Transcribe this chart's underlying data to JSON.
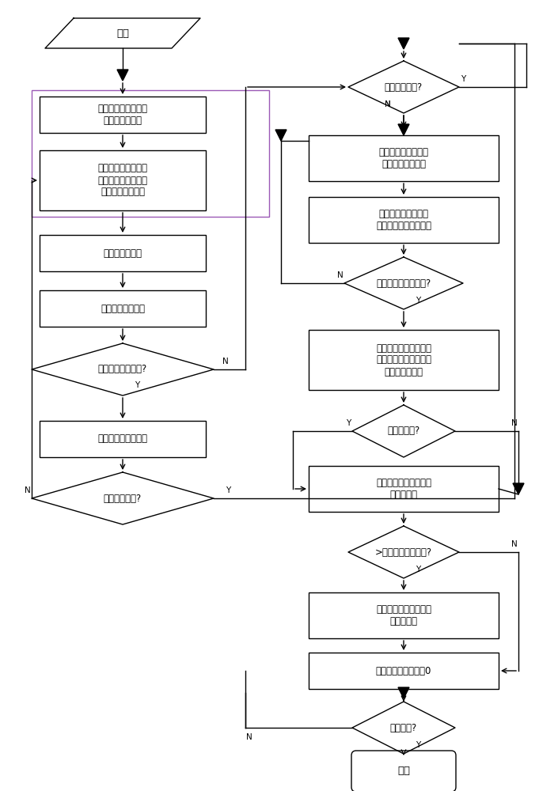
{
  "bg_color": "#ffffff",
  "line_color": "#000000",
  "font_size": 8.5,
  "nodes": {
    "start_text": "开始",
    "box1_text": "根据感兴趣区域制作\n感兴趣区域蒙版",
    "box2_text": "利用感兴趣区域蒙版\n与原图像逻辑操作得\n到感兴趣区域图像",
    "box3_text": "初步提取粗角点",
    "box4_text": "角点去伪筛选操作",
    "dia1_text": "是否制作匹配模板?",
    "box5_text": "制作角点集匹配模板",
    "dia2_text": "模板训练完毕?",
    "dia3_text": "角点总数超标?",
    "box6_text": "读取匹配模板中角点\n对应位置像素信息",
    "box7_text": "根据得到角点像素信\n息，判断该点是否匹配",
    "dia4_text": "该图像角点匹配完毕?",
    "box8_text": "根据匹配过程中统计的\n匹配情况判断是否达到\n对应的匹配标准",
    "dia5_text": "该图像匹配?",
    "box9_text": "输出不匹配信息，未匹\n配帧数加一",
    "dia6_text": ">连续异常帧数阈值?",
    "box10_text": "发生场景变换，通知重\n新制作模板",
    "box11_text": "连续异常帧数计数置0",
    "dia7_text": "视频完毕?",
    "end_text": "结束"
  }
}
